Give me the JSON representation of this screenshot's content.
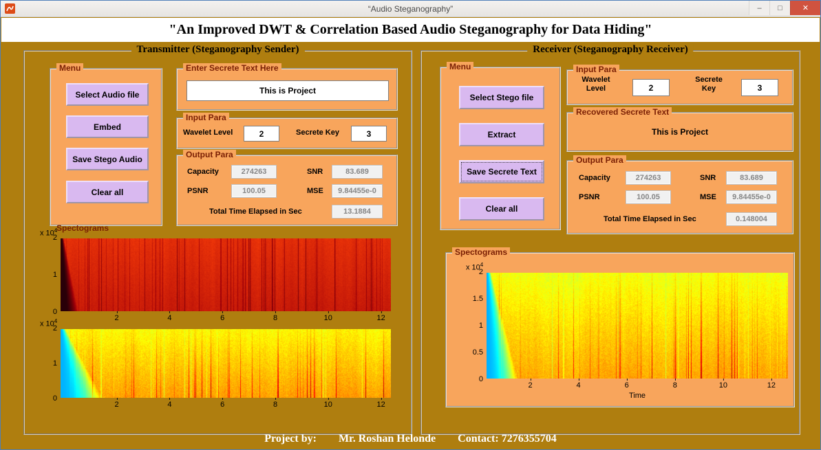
{
  "colors": {
    "figure_bg": "#AF7E0F",
    "panel_orange": "#F8A55C",
    "button_lavender": "#D9B9F0",
    "group_title_maroon": "#7A1F04",
    "close_button_red": "#D0533F",
    "header_bg": "#FFFFFF"
  },
  "window": {
    "title": "“Audio Steganography”",
    "minimize_glyph": "–",
    "maximize_glyph": "□",
    "close_glyph": "✕"
  },
  "header": {
    "title": "\"An Improved DWT & Correlation Based Audio Steganography for Data Hiding\""
  },
  "footer": {
    "project_by": "Project by:",
    "author": "Mr. Roshan Helonde",
    "contact": "Contact: 7276355704"
  },
  "transmitter": {
    "title": "Transmitter (Steganography Sender)",
    "menu": {
      "title": "Menu",
      "buttons": [
        {
          "label": "Select Audio file"
        },
        {
          "label": "Embed"
        },
        {
          "label": "Save Stego Audio"
        },
        {
          "label": "Clear all"
        }
      ]
    },
    "secret": {
      "title": "Enter Secrete Text Here",
      "value": "This is Project"
    },
    "input_para": {
      "title": "Input Para",
      "wavelet_label": "Wavelet Level",
      "wavelet_value": "2",
      "key_label": "Secrete Key",
      "key_value": "3"
    },
    "output_para": {
      "title": "Output Para",
      "capacity_label": "Capacity",
      "capacity_value": "274263",
      "snr_label": "SNR",
      "snr_value": "83.689",
      "psnr_label": "PSNR",
      "psnr_value": "100.05",
      "mse_label": "MSE",
      "mse_value": "9.84455e-0",
      "time_label": "Total Time Elapsed in Sec",
      "time_value": "13.1884"
    },
    "spectograms": {
      "title": "Spectograms",
      "plot1": {
        "exp_base": "x 10",
        "exp_sup": "4",
        "y_ticks": [
          "2",
          "1",
          "0"
        ],
        "x_ticks": [
          "2",
          "4",
          "6",
          "8",
          "10",
          "12"
        ]
      },
      "plot2": {
        "exp_base": "x 10",
        "exp_sup": "4",
        "y_ticks": [
          "2",
          "1",
          "0"
        ],
        "x_ticks": [
          "2",
          "4",
          "6",
          "8",
          "10",
          "12"
        ]
      }
    }
  },
  "receiver": {
    "title": "Receiver (Steganography Receiver)",
    "menu": {
      "title": "Menu",
      "buttons": [
        {
          "label": "Select Stego file"
        },
        {
          "label": "Extract"
        },
        {
          "label": "Save Secrete Text"
        },
        {
          "label": "Clear all"
        }
      ]
    },
    "input_para": {
      "title": "Input Para",
      "wavelet_label": "Wavelet Level",
      "wavelet_value": "2",
      "key_label": "Secrete Key",
      "key_value": "3"
    },
    "recovered": {
      "title": "Recovered Secrete Text",
      "value": "This is Project"
    },
    "output_para": {
      "title": "Output Para",
      "capacity_label": "Capacity",
      "capacity_value": "274263",
      "snr_label": "SNR",
      "snr_value": "83.689",
      "psnr_label": "PSNR",
      "psnr_value": "100.05",
      "mse_label": "MSE",
      "mse_value": "9.84455e-0",
      "time_label": "Total Time Elapsed in Sec",
      "time_value": "0.148004"
    },
    "spectograms": {
      "title": "Spectograms",
      "plot": {
        "exp_base": "x 10",
        "exp_sup": "4",
        "y_ticks": [
          "2",
          "1.5",
          "1",
          "0.5",
          "0"
        ],
        "x_ticks": [
          "2",
          "4",
          "6",
          "8",
          "10",
          "12"
        ],
        "x_label": "Time"
      }
    }
  }
}
